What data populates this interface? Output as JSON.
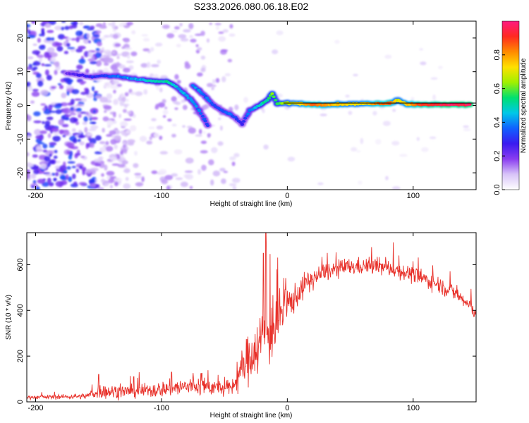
{
  "title": "S233.2026.080.06.18.E02",
  "colors": {
    "background": "#ffffff",
    "axis": "#000000",
    "snr_line": "#e8312a",
    "reference_line": "#000000"
  },
  "chart_data": [
    {
      "type": "heatmap",
      "name": "spectrogram",
      "title": "S233.2026.080.06.18.E02",
      "xlabel": "Height of straight line (km)",
      "ylabel": "Frequency (Hz)",
      "xlim": [
        -207,
        150
      ],
      "ylim": [
        -25,
        25
      ],
      "xticks": [
        -200,
        -100,
        0,
        100
      ],
      "xtick_labels": [
        "-200",
        "-100",
        "0",
        "100"
      ],
      "yticks": [
        -20,
        -10,
        0,
        10,
        20
      ],
      "ytick_labels": [
        "-20",
        "-10",
        "0",
        "10",
        "20"
      ],
      "reference_freq_hz": 0.7,
      "reference_from_km": -3,
      "ridge": {
        "description": "dominant spectral ridge (x km, y Hz, normalized amplitude)",
        "points": [
          [
            -175,
            9.5,
            0.22
          ],
          [
            -165,
            9.0,
            0.26
          ],
          [
            -155,
            8.5,
            0.3
          ],
          [
            -145,
            8.8,
            0.32
          ],
          [
            -135,
            8.6,
            0.36
          ],
          [
            -125,
            8.0,
            0.4
          ],
          [
            -115,
            7.5,
            0.45
          ],
          [
            -105,
            7.2,
            0.5
          ],
          [
            -95,
            7.0,
            0.5
          ],
          [
            -88,
            5.5,
            0.45
          ],
          [
            -82,
            3.5,
            0.42
          ],
          [
            -76,
            1.5,
            0.4
          ],
          [
            -70,
            -1.5,
            0.38
          ],
          [
            -66,
            -4.0,
            0.36
          ],
          [
            -63,
            -5.8,
            0.32
          ],
          [
            -75,
            6.0,
            0.38
          ],
          [
            -70,
            4.5,
            0.38
          ],
          [
            -65,
            2.5,
            0.36
          ],
          [
            -58,
            0.0,
            0.34
          ],
          [
            -52,
            -1.5,
            0.34
          ],
          [
            -46,
            -2.5,
            0.36
          ],
          [
            -40,
            -4.0,
            0.32
          ],
          [
            -36,
            -5.5,
            0.28
          ],
          [
            -30,
            -1.5,
            0.4
          ],
          [
            -25,
            -0.5,
            0.42
          ],
          [
            -20,
            0.5,
            0.5
          ],
          [
            -16,
            1.5,
            0.52
          ],
          [
            -12,
            3.5,
            0.6
          ],
          [
            -8,
            0.5,
            0.55
          ],
          [
            0,
            0.7,
            0.65
          ],
          [
            10,
            0.5,
            0.72
          ],
          [
            20,
            0.2,
            0.85
          ],
          [
            30,
            0.2,
            0.8
          ],
          [
            40,
            0.3,
            0.75
          ],
          [
            50,
            0.4,
            0.7
          ],
          [
            60,
            0.5,
            0.72
          ],
          [
            70,
            0.5,
            0.8
          ],
          [
            80,
            0.6,
            0.88
          ],
          [
            88,
            1.5,
            0.7
          ],
          [
            95,
            0.4,
            0.75
          ],
          [
            105,
            0.2,
            0.9
          ],
          [
            115,
            0.2,
            0.92
          ],
          [
            125,
            0.2,
            0.95
          ],
          [
            135,
            0.2,
            0.96
          ],
          [
            145,
            0.2,
            0.95
          ]
        ]
      },
      "colorbar": {
        "label": "Normalized spectral amplitude",
        "range": [
          0,
          1
        ],
        "ticks": [
          0.0,
          0.2,
          0.4,
          0.6,
          0.8
        ],
        "tick_labels": [
          "0.0",
          "0.2",
          "0.4",
          "0.6",
          "0.8"
        ],
        "stops": [
          "#ffffff",
          "#d8c4f8",
          "#8a3df0",
          "#3a1af0",
          "#1060ff",
          "#00c8e8",
          "#00e070",
          "#a0f000",
          "#ffe000",
          "#ff8a00",
          "#ff2a20",
          "#ff1a80"
        ]
      }
    },
    {
      "type": "line",
      "name": "snr",
      "xlabel": "Height of straight line (km)",
      "ylabel": "SNR (10 * v/v)",
      "xlim": [
        -207,
        150
      ],
      "ylim": [
        0,
        740
      ],
      "xticks": [
        -200,
        -100,
        0,
        100
      ],
      "xtick_labels": [
        "-200",
        "-100",
        "0",
        "100"
      ],
      "yticks": [
        0,
        200,
        400,
        600
      ],
      "ytick_labels": [
        "0",
        "200",
        "400",
        "600"
      ],
      "envelope": {
        "description": "approximate mean SNR trend with noise amplitude (x km, mean, noise)",
        "points": [
          [
            -207,
            20,
            10
          ],
          [
            -180,
            22,
            12
          ],
          [
            -160,
            25,
            15
          ],
          [
            -150,
            45,
            40
          ],
          [
            -130,
            45,
            35
          ],
          [
            -110,
            50,
            40
          ],
          [
            -90,
            60,
            45
          ],
          [
            -75,
            70,
            55
          ],
          [
            -60,
            65,
            45
          ],
          [
            -45,
            55,
            40
          ],
          [
            -38,
            120,
            90
          ],
          [
            -30,
            200,
            140
          ],
          [
            -22,
            260,
            170
          ],
          [
            -16,
            300,
            200
          ],
          [
            -10,
            330,
            160
          ],
          [
            -5,
            380,
            140
          ],
          [
            0,
            420,
            110
          ],
          [
            5,
            450,
            80
          ],
          [
            15,
            520,
            60
          ],
          [
            30,
            570,
            50
          ],
          [
            50,
            590,
            45
          ],
          [
            70,
            595,
            45
          ],
          [
            85,
            580,
            45
          ],
          [
            100,
            555,
            45
          ],
          [
            120,
            515,
            45
          ],
          [
            135,
            470,
            45
          ],
          [
            150,
            390,
            40
          ]
        ]
      },
      "peaks": [
        [
          -17,
          740
        ],
        [
          -19,
          650
        ],
        [
          -150,
          120
        ],
        [
          -122,
          110
        ],
        [
          -92,
          130
        ],
        [
          -68,
          125
        ]
      ]
    }
  ]
}
